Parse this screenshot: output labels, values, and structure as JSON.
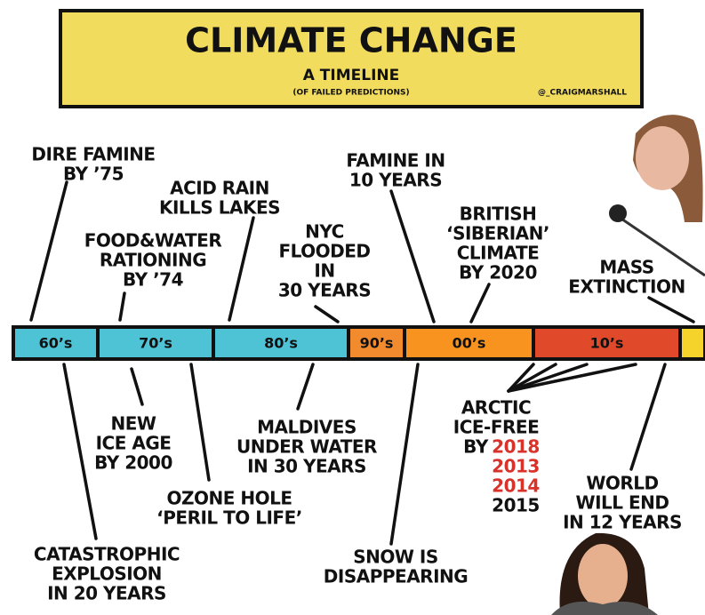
{
  "header": {
    "title": "CLIMATE CHANGE",
    "subtitle": "A TIMELINE",
    "note": "(OF FAILED PREDICTIONS)",
    "credit": "@_CRAIGMARSHALL"
  },
  "timeline": {
    "segments": [
      "60’s",
      "70’s",
      "80’s",
      "90’s",
      "00’s",
      "10’s"
    ]
  },
  "above": [
    {
      "lines": [
        "DIRE FAMINE",
        "BY ’75"
      ]
    },
    {
      "lines": [
        "FOOD&WATER",
        "RATIONING",
        "BY ’74"
      ]
    },
    {
      "lines": [
        "ACID RAIN",
        "KILLS LAKES"
      ]
    },
    {
      "lines": [
        "NYC",
        "FLOODED",
        "IN",
        "30 YEARS"
      ]
    },
    {
      "lines": [
        "FAMINE IN",
        "10 YEARS"
      ]
    },
    {
      "lines": [
        "BRITISH",
        "‘SIBERIAN’",
        "CLIMATE",
        "BY 2020"
      ]
    },
    {
      "lines": [
        "MASS",
        "EXTINCTION"
      ]
    }
  ],
  "below": [
    {
      "lines": [
        "NEW",
        "ICE AGE",
        "BY 2000"
      ]
    },
    {
      "lines": [
        "CATASTROPHIC",
        "EXPLOSION",
        "IN 20 YEARS"
      ]
    },
    {
      "lines": [
        "OZONE HOLE",
        "‘PERIL TO LIFE’"
      ]
    },
    {
      "lines": [
        "MALDIVES",
        "UNDER WATER",
        "IN 30 YEARS"
      ]
    },
    {
      "lines": [
        "SNOW IS",
        "DISAPPEARING"
      ]
    },
    {
      "lines": [
        "WORLD",
        "WILL END",
        "IN 12 YEARS"
      ]
    }
  ],
  "arctic": {
    "lines": [
      "ARCTIC",
      "ICE-FREE"
    ],
    "by": "BY",
    "years": [
      "2018",
      "2013",
      "2014",
      "2015"
    ]
  }
}
